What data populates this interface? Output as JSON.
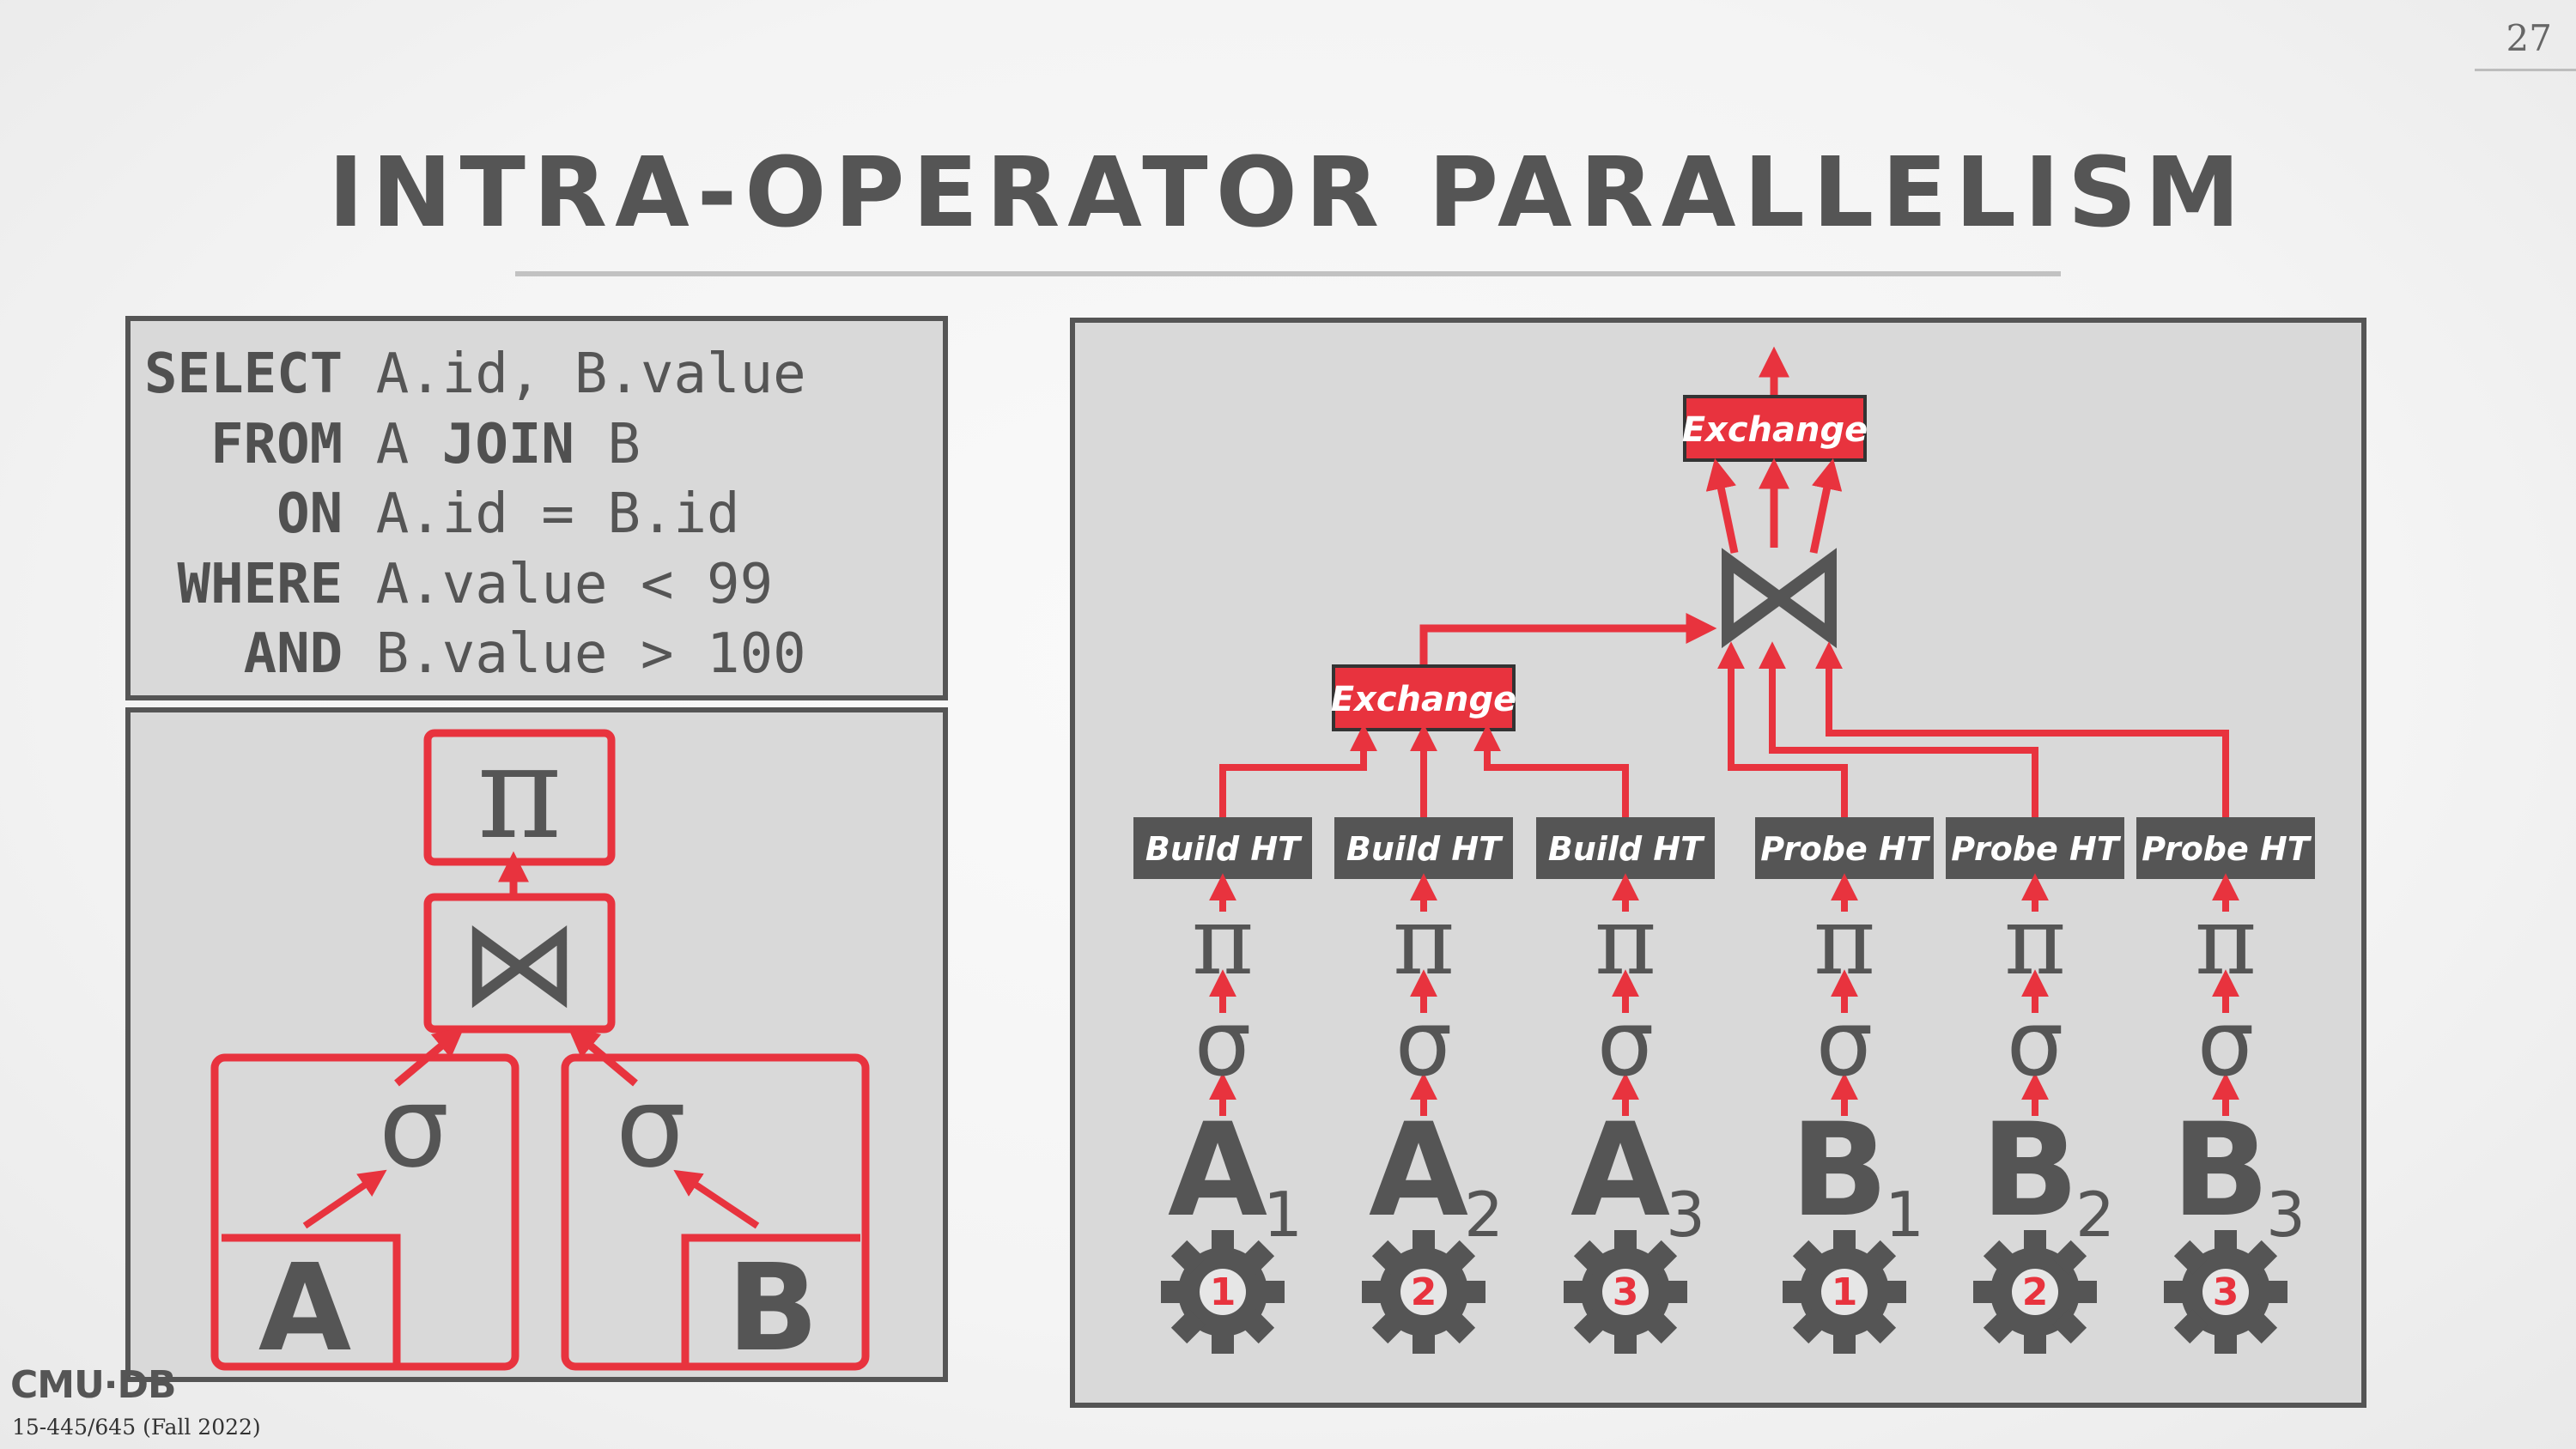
{
  "slide": {
    "page_number": "27",
    "title": "INTRA-OPERATOR PARALLELISM",
    "footer_logo": "CMU·DB",
    "footer_course": "15-445/645 (Fall 2022)"
  },
  "sql": {
    "lines": [
      {
        "kw": "SELECT",
        "rest": " A.id, B.value"
      },
      {
        "kw": "  FROM",
        "rest": " A ",
        "kw2": "JOIN",
        "rest2": " B"
      },
      {
        "kw": "    ON",
        "rest": " A.id = B.id"
      },
      {
        "kw": " WHERE",
        "rest": " A.value < 99"
      },
      {
        "kw": "   AND",
        "rest": " B.value > 100"
      }
    ]
  },
  "logical_plan": {
    "projection": "π",
    "join": "⋈",
    "selection_left": "σ",
    "selection_right": "σ",
    "table_left": "A",
    "table_right": "B"
  },
  "parallel_plan": {
    "exchange_top": "Exchange",
    "exchange_build": "Exchange",
    "join": "⋈",
    "pipelines": [
      {
        "op": "Build HT",
        "proj": "π",
        "sel": "σ",
        "table": "A",
        "sub": "1",
        "worker": "1"
      },
      {
        "op": "Build HT",
        "proj": "π",
        "sel": "σ",
        "table": "A",
        "sub": "2",
        "worker": "2"
      },
      {
        "op": "Build HT",
        "proj": "π",
        "sel": "σ",
        "table": "A",
        "sub": "3",
        "worker": "3"
      },
      {
        "op": "Probe HT",
        "proj": "π",
        "sel": "σ",
        "table": "B",
        "sub": "1",
        "worker": "1"
      },
      {
        "op": "Probe HT",
        "proj": "π",
        "sel": "σ",
        "table": "B",
        "sub": "2",
        "worker": "2"
      },
      {
        "op": "Probe HT",
        "proj": "π",
        "sel": "σ",
        "table": "B",
        "sub": "3",
        "worker": "3"
      }
    ]
  },
  "colors": {
    "accent_red": "#e8333e",
    "dark_gray": "#555555",
    "panel_bg": "#d9d9d9"
  }
}
